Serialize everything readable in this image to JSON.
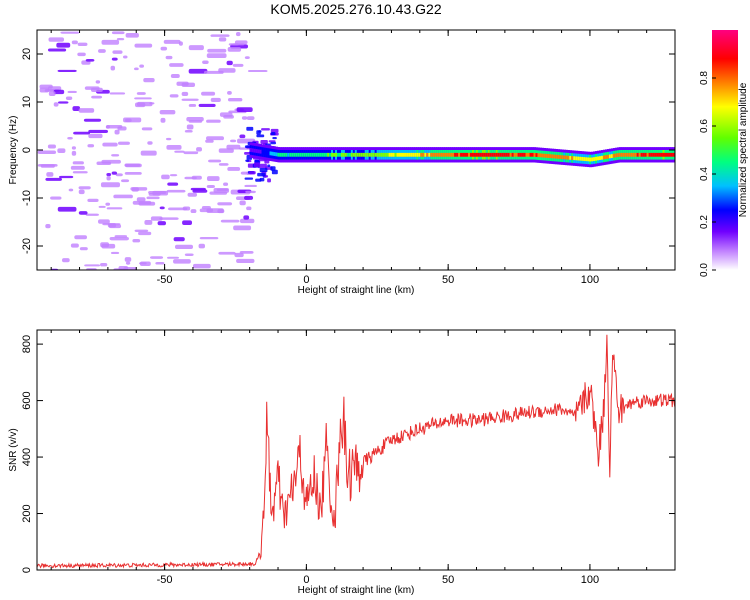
{
  "title": "KOM5.2025.276.10.43.G22",
  "chart_data": [
    {
      "type": "heatmap",
      "name": "spectrogram",
      "xlabel": "Height of straight line (km)",
      "ylabel": "Frequency (Hz)",
      "xlim": [
        -95,
        130
      ],
      "ylim": [
        -25,
        25
      ],
      "xticks": [
        -50,
        0,
        50,
        100
      ],
      "xtick_labels": [
        "-50",
        "0",
        "50",
        "100"
      ],
      "yticks": [
        -20,
        -10,
        0,
        10,
        20
      ],
      "ytick_labels": [
        "-20",
        "-10",
        "0",
        "10",
        "20"
      ],
      "colorbar": {
        "label": "Normalized spectral amplitude",
        "range": [
          0,
          1
        ],
        "ticks": [
          0.0,
          0.2,
          0.4,
          0.6,
          0.8
        ],
        "tick_labels": [
          "0.0",
          "0.2",
          "0.4",
          "0.6",
          "0.8"
        ],
        "colors": [
          "#ffffff",
          "#c080ff",
          "#7000ff",
          "#0000ff",
          "#00c0ff",
          "#00ff80",
          "#80ff00",
          "#ffff00",
          "#ff8000",
          "#ff0000",
          "#ff0080"
        ]
      },
      "ridge": {
        "description_points": [
          [
            -20,
            0,
            0.15
          ],
          [
            -10,
            -1,
            0.45
          ],
          [
            0,
            -1,
            0.5
          ],
          [
            10,
            -1,
            0.55
          ],
          [
            25,
            -1,
            0.6
          ],
          [
            40,
            -1,
            0.75
          ],
          [
            60,
            -1,
            0.9
          ],
          [
            80,
            -1,
            0.85
          ],
          [
            100,
            -2,
            0.7
          ],
          [
            110,
            -1,
            0.8
          ],
          [
            130,
            -1,
            0.9
          ]
        ]
      }
    },
    {
      "type": "line",
      "name": "snr",
      "xlabel": "Height of straight line (km)",
      "ylabel": "SNR (v/v)",
      "xlim": [
        -95,
        130
      ],
      "ylim": [
        0,
        850
      ],
      "xticks": [
        -50,
        0,
        50,
        100
      ],
      "xtick_labels": [
        "-50",
        "0",
        "50",
        "100"
      ],
      "yticks": [
        0,
        200,
        400,
        600,
        800
      ],
      "ytick_labels": [
        "0",
        "200",
        "400",
        "600",
        "800"
      ],
      "color": "#e83030",
      "series": [
        {
          "name": "SNR",
          "x": [
            -95,
            -60,
            -30,
            -18,
            -16,
            -15,
            -14,
            -12,
            -10,
            -8,
            -5,
            -2,
            0,
            3,
            5,
            7,
            10,
            12,
            15,
            20,
            30,
            40,
            50,
            60,
            70,
            80,
            90,
            95,
            100,
            103,
            105,
            106,
            107,
            108,
            110,
            115,
            120,
            130
          ],
          "y": [
            15,
            17,
            20,
            22,
            60,
            250,
            470,
            200,
            320,
            180,
            280,
            400,
            230,
            330,
            200,
            420,
            150,
            570,
            340,
            380,
            460,
            500,
            530,
            530,
            545,
            560,
            570,
            540,
            640,
            420,
            580,
            840,
            360,
            780,
            560,
            595,
            600,
            600
          ]
        }
      ]
    }
  ]
}
